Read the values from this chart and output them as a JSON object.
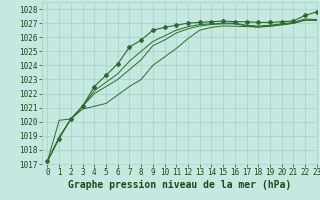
{
  "xlabel": "Graphe pression niveau de la mer (hPa)",
  "ylim": [
    1017,
    1028.5
  ],
  "xlim": [
    -0.5,
    23
  ],
  "yticks": [
    1017,
    1018,
    1019,
    1020,
    1021,
    1022,
    1023,
    1024,
    1025,
    1026,
    1027,
    1028
  ],
  "xticks": [
    0,
    1,
    2,
    3,
    4,
    5,
    6,
    7,
    8,
    9,
    10,
    11,
    12,
    13,
    14,
    15,
    16,
    17,
    18,
    19,
    20,
    21,
    22,
    23
  ],
  "bg_color": "#c5e8e0",
  "grid_color": "#a8cfc8",
  "line_color": "#2d6b2d",
  "series": [
    [
      1017.2,
      1018.8,
      1020.2,
      1021.1,
      1022.5,
      1023.3,
      1024.1,
      1025.3,
      1025.8,
      1026.5,
      1026.7,
      1026.85,
      1027.0,
      1027.05,
      1027.1,
      1027.15,
      1027.1,
      1027.1,
      1027.05,
      1027.05,
      1027.1,
      1027.15,
      1027.55,
      1027.8
    ],
    [
      1017.2,
      1018.9,
      1020.2,
      1021.1,
      1022.2,
      1022.8,
      1023.4,
      1024.3,
      1025.0,
      1025.7,
      1026.1,
      1026.5,
      1026.75,
      1026.9,
      1026.95,
      1027.0,
      1027.0,
      1026.85,
      1026.8,
      1026.85,
      1026.95,
      1027.05,
      1027.3,
      1027.25
    ],
    [
      1017.2,
      1018.9,
      1020.2,
      1021.1,
      1022.0,
      1022.5,
      1023.0,
      1023.7,
      1024.4,
      1025.4,
      1025.8,
      1026.3,
      1026.6,
      1026.8,
      1026.9,
      1026.95,
      1026.95,
      1026.8,
      1026.72,
      1026.78,
      1026.88,
      1026.98,
      1027.22,
      1027.22
    ],
    [
      1017.2,
      1020.1,
      1020.2,
      1020.9,
      1021.1,
      1021.3,
      1021.9,
      1022.5,
      1023.0,
      1024.0,
      1024.6,
      1025.2,
      1025.9,
      1026.5,
      1026.7,
      1026.8,
      1026.78,
      1026.75,
      1026.72,
      1026.78,
      1026.88,
      1027.0,
      1027.2,
      1027.2
    ]
  ],
  "font_color": "#1a4a1a",
  "xlabel_fontsize": 7,
  "tick_fontsize": 5.5
}
